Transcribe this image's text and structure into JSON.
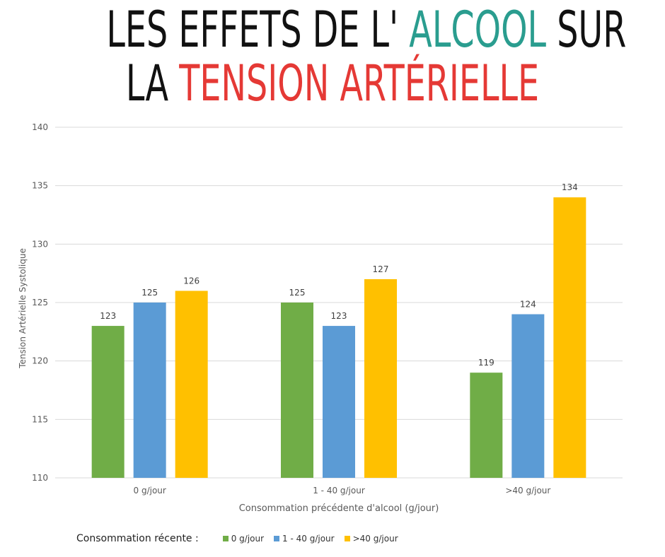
{
  "title": {
    "line1_before": "LES EFFETS DE L'",
    "line1_highlight": "ALCOOL",
    "line1_after": "SUR",
    "line2_before": "LA",
    "line2_highlight": "TENSION ARTÉRIELLE"
  },
  "colors": {
    "title_text": "#111111",
    "highlight_alcool": "#2a9d8f",
    "highlight_tension": "#e53935",
    "series": [
      "#70ad47",
      "#5b9bd5",
      "#ffc000"
    ],
    "grid": "#d9d9d9",
    "axis_text": "#595959"
  },
  "legend": {
    "lead_label": "Consommation récente :",
    "placement": "bottom"
  },
  "chart_data": {
    "type": "bar",
    "categories": [
      "0 g/jour",
      "1 - 40 g/jour",
      ">40 g/jour"
    ],
    "series": [
      {
        "name": "0 g/jour",
        "values": [
          123,
          125,
          119
        ]
      },
      {
        "name": "1 - 40 g/jour",
        "values": [
          125,
          123,
          124
        ]
      },
      {
        "name": ">40 g/jour",
        "values": [
          126,
          127,
          134
        ]
      }
    ],
    "xlabel": "Consommation précédente d'alcool (g/jour)",
    "ylabel": "Tension Artérielle Systolique",
    "ylim": [
      110,
      140
    ],
    "yticks": [
      110,
      115,
      120,
      125,
      130,
      135,
      140
    ],
    "grid": true,
    "data_labels": true
  }
}
